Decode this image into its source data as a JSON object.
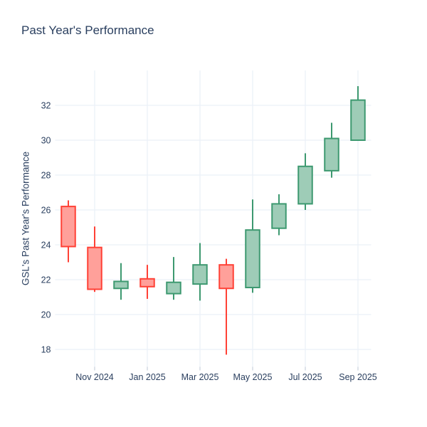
{
  "title": "Past Year's Performance",
  "chart_data": {
    "type": "candlestick",
    "title": "Past Year's Performance",
    "xlabel": "",
    "ylabel": "GSL's Past Year's Performance",
    "categories": [
      "Oct 2024",
      "Nov 2024",
      "Dec 2024",
      "Jan 2025",
      "Feb 2025",
      "Mar 2025",
      "Apr 2025",
      "May 2025",
      "Jun 2025",
      "Jul 2025",
      "Aug 2025",
      "Sep 2025"
    ],
    "series": [
      {
        "month": "Oct 2024",
        "open": 26.2,
        "high": 26.55,
        "low": 23.0,
        "close": 23.9,
        "direction": "down"
      },
      {
        "month": "Nov 2024",
        "open": 23.85,
        "high": 25.05,
        "low": 21.3,
        "close": 21.45,
        "direction": "down"
      },
      {
        "month": "Dec 2024",
        "open": 21.5,
        "high": 22.95,
        "low": 20.85,
        "close": 21.9,
        "direction": "up"
      },
      {
        "month": "Jan 2025",
        "open": 22.05,
        "high": 22.85,
        "low": 20.9,
        "close": 21.6,
        "direction": "down"
      },
      {
        "month": "Feb 2025",
        "open": 21.2,
        "high": 23.3,
        "low": 20.85,
        "close": 21.85,
        "direction": "up"
      },
      {
        "month": "Mar 2025",
        "open": 21.75,
        "high": 24.1,
        "low": 20.8,
        "close": 22.85,
        "direction": "up"
      },
      {
        "month": "Apr 2025",
        "open": 22.85,
        "high": 23.2,
        "low": 17.7,
        "close": 21.5,
        "direction": "down"
      },
      {
        "month": "May 2025",
        "open": 21.55,
        "high": 26.6,
        "low": 21.25,
        "close": 24.85,
        "direction": "up"
      },
      {
        "month": "Jun 2025",
        "open": 24.95,
        "high": 26.9,
        "low": 24.55,
        "close": 26.35,
        "direction": "up"
      },
      {
        "month": "Jul 2025",
        "open": 26.35,
        "high": 29.25,
        "low": 26.0,
        "close": 28.5,
        "direction": "up"
      },
      {
        "month": "Aug 2025",
        "open": 28.25,
        "high": 31.0,
        "low": 27.85,
        "close": 30.1,
        "direction": "up"
      },
      {
        "month": "Sep 2025",
        "open": 30.0,
        "high": 33.1,
        "low": 30.0,
        "close": 32.3,
        "direction": "up"
      }
    ],
    "x_tick_labels": [
      "Nov 2024",
      "Jan 2025",
      "Mar 2025",
      "May 2025",
      "Jul 2025",
      "Sep 2025"
    ],
    "y_ticks": [
      18,
      20,
      22,
      24,
      26,
      28,
      30,
      32
    ],
    "ylim": [
      17,
      34
    ],
    "grid": true,
    "legend": "none",
    "colors": {
      "increasing_line": "#3d9970",
      "increasing_fill": "#9eccb7",
      "decreasing_line": "#ff4136",
      "decreasing_fill": "#ffa09a",
      "text": "#2a3f5f",
      "gridline": "#ebf0f8",
      "tick": "#c8d0dc",
      "background": "#ffffff"
    }
  }
}
